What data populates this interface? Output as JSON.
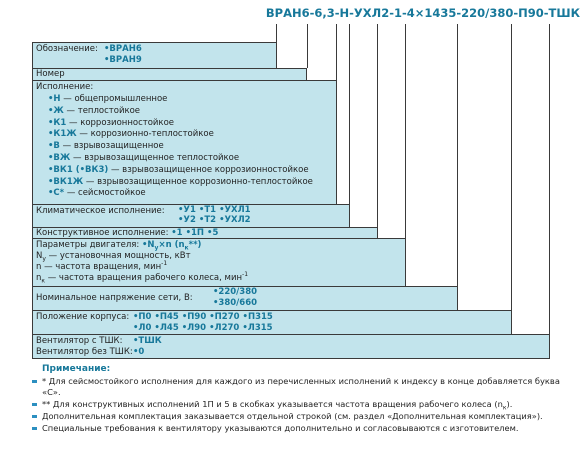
{
  "code": "ВРАН6-6,3-Н-УХЛ2-1-4×1435-220/380-П90-ТШК",
  "designation": {
    "label": "Обозначение:",
    "options": [
      "•ВРАН6",
      "•ВРАН9"
    ]
  },
  "number": {
    "label": "Номер"
  },
  "execution": {
    "label": "Исполнение:",
    "items": [
      {
        "code": "•Н",
        "text": " — общепромышленное"
      },
      {
        "code": "•Ж",
        "text": " — теплостойкое"
      },
      {
        "code": "•К1",
        "text": " — коррозионностойкое"
      },
      {
        "code": "•К1Ж",
        "text": " — коррозионно-теплостойкое"
      },
      {
        "code": "•В",
        "text": " — взрывозащищенное"
      },
      {
        "code": "•ВЖ",
        "text": " — взрывозащищенное теплостойкое"
      },
      {
        "code": "•ВК1 (•ВК3)",
        "text": " — взрывозащищенное коррозионностойкое"
      },
      {
        "code": "•ВК1Ж",
        "text": " — взрывозащищенное коррозионно-теплостойкое"
      },
      {
        "code": "•С*",
        "text": " — сейсмостойкое"
      }
    ]
  },
  "climate": {
    "label": "Климатическое исполнение:",
    "options": [
      [
        "•У1",
        "•Т1",
        "•УХЛ1"
      ],
      [
        "•У2",
        "•Т2",
        "•УХЛ2"
      ]
    ]
  },
  "design": {
    "label": "Конструктивное исполнение:",
    "options": [
      "•1",
      "•1П",
      "•5"
    ]
  },
  "motor": {
    "label": "Параметры двигателя:",
    "formula": [
      "•N",
      "у",
      "×n (n",
      "к",
      "**)"
    ],
    "lines": [
      [
        "N",
        "у",
        " — установочная мощность, кВт"
      ],
      [
        "n — частота вращения, мин",
        "-1"
      ],
      [
        "n",
        "к",
        " — частота вращения рабочего колеса, мин",
        "-1"
      ]
    ]
  },
  "voltage": {
    "label": "Номинальное напряжение сети, В:",
    "options": [
      "•220/380",
      "•380/660"
    ]
  },
  "position": {
    "label": "Положение корпуса:",
    "options": [
      [
        "•П0",
        "•П45",
        "•П90",
        "•П270",
        "•П315"
      ],
      [
        "•Л0",
        "•Л45",
        "•Л90",
        "•Л270",
        "•Л315"
      ]
    ]
  },
  "tshk": [
    {
      "label": "Вентилятор с ТШК:",
      "option": "•ТШК"
    },
    {
      "label": "Вентилятор без ТШК:",
      "option": "•0"
    }
  ],
  "notes": {
    "title": "Примечание:",
    "items": [
      [
        "* Для сейсмостойкого исполнения для каждого из перечисленных исполнений к индексу в конце добавляется буква «С»."
      ],
      [
        "** Для конструктивных исполнений 1П и 5 в скобках указывается частота вращения рабочего колеса (n",
        "к",
        ")."
      ],
      [
        "Дополнительная комплектация заказывается отдельной строкой (см. раздел «Дополнительная комплектация»)."
      ],
      [
        "Специальные требования к вентилятору указываются дополнительно и согласовываются с изготовителем."
      ]
    ]
  }
}
